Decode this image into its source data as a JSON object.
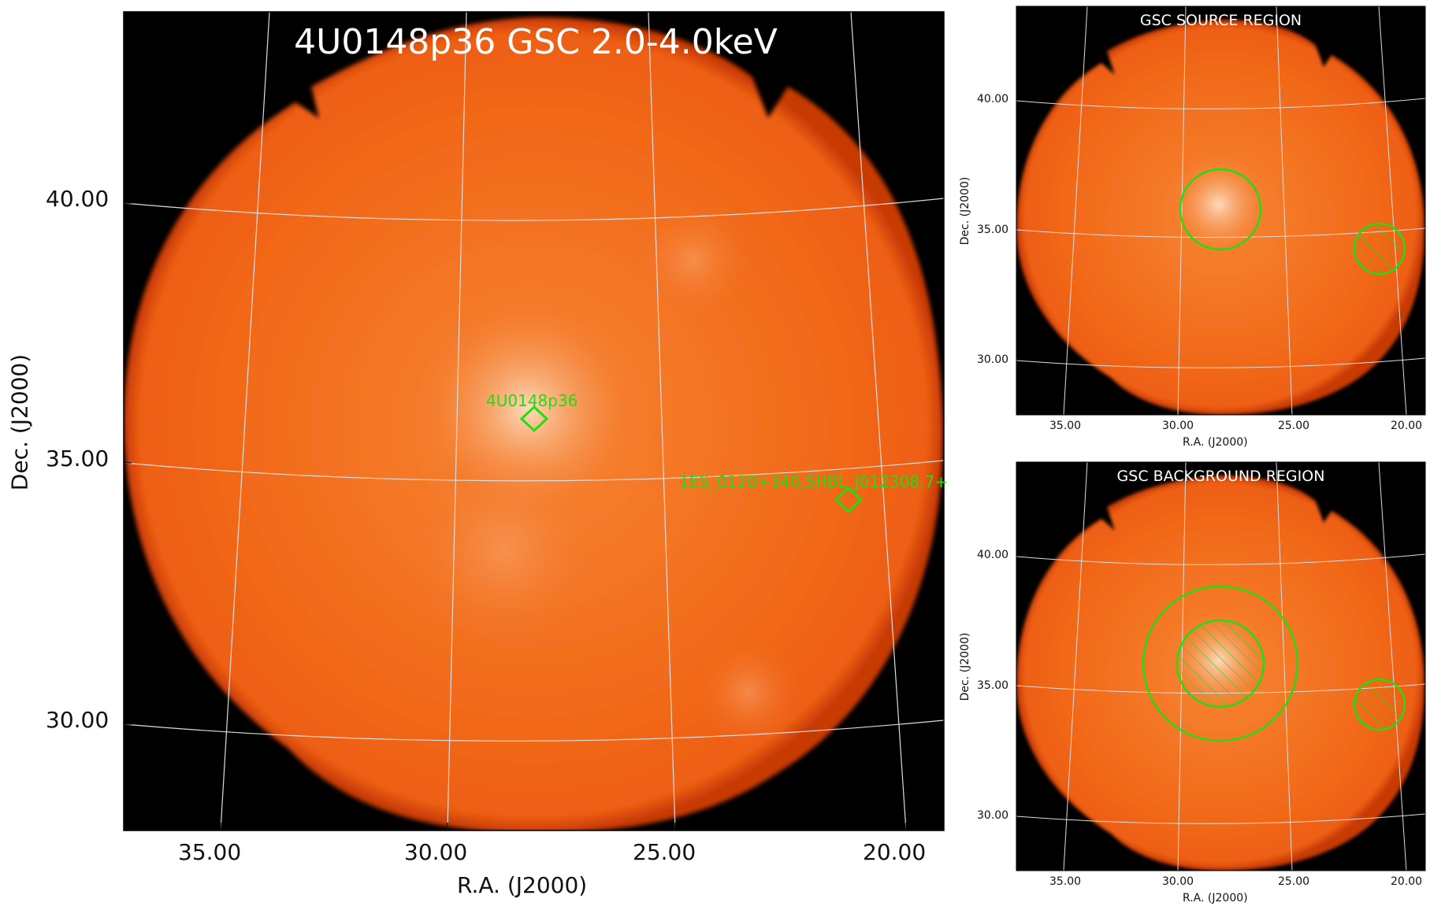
{
  "main": {
    "title": "4U0148p36 GSC 2.0-4.0keV",
    "xlabel": "R.A. (J2000)",
    "ylabel": "Dec. (J2000)",
    "xticks": [
      "35.00",
      "30.00",
      "25.00",
      "20.00"
    ],
    "yticks": [
      "40.00",
      "35.00",
      "30.00"
    ],
    "sources": [
      {
        "label": "4U0148p36",
        "ra": 28.1,
        "dec": 35.8
      },
      {
        "label": "1ES_0120+340,SHBL_J012308.7+",
        "ra": 21.3,
        "dec": 34.3
      }
    ]
  },
  "source_panel": {
    "title": "GSC SOURCE REGION",
    "xlabel": "R.A. (J2000)",
    "ylabel": "Dec. (J2000)",
    "xticks": [
      "35.00",
      "30.00",
      "25.00",
      "20.00"
    ],
    "yticks": [
      "40.00",
      "35.00",
      "30.00"
    ]
  },
  "background_panel": {
    "title": "GSC BACKGROUND REGION",
    "xlabel": "R.A. (J2000)",
    "ylabel": "Dec. (J2000)",
    "xticks": [
      "35.00",
      "30.00",
      "25.00",
      "20.00"
    ],
    "yticks": [
      "40.00",
      "35.00",
      "30.00"
    ]
  },
  "colors": {
    "image_fill": "#f26a1a",
    "image_bright": "#fbd2a8",
    "background": "#000000",
    "region": "#22dd11",
    "grid": "#dddddd"
  }
}
